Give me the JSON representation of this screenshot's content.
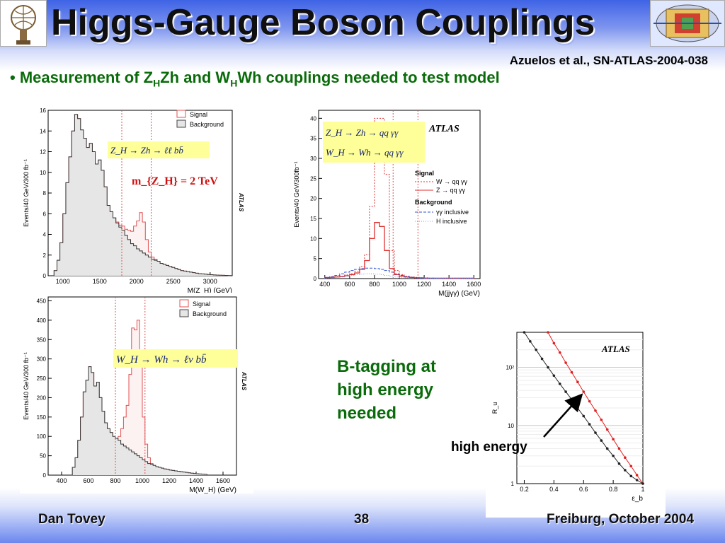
{
  "slide": {
    "title": "Higgs-Gauge Boson Couplings",
    "reference": "Azuelos et al., SN-ATLAS-2004-038",
    "bullet_marker": "•",
    "bullet_pre": "Measurement of Z",
    "bullet_sub1": "H",
    "bullet_mid": "Zh and W",
    "bullet_sub2": "H",
    "bullet_post": "Wh couplings needed to test model",
    "btag_text": "B-tagging at high energy needed",
    "arrow_label": "high energy",
    "footer_left": "Dan Tovey",
    "footer_center": "38",
    "footer_right": "Freiburg, October 2004"
  },
  "chart_data": [
    {
      "type": "histogram",
      "id": "zh-llbb",
      "xlabel": "M(Z_H) (GeV)",
      "ylabel": "Events/40 GeV/300 fb⁻¹",
      "xlim": [
        800,
        3300
      ],
      "ylim": [
        0,
        16
      ],
      "xticks": [
        1000,
        1500,
        2000,
        2500,
        3000
      ],
      "yticks": [
        0,
        2,
        4,
        6,
        8,
        10,
        12,
        14,
        16
      ],
      "legend": [
        "Signal",
        "Background"
      ],
      "watermark": "ATLAS",
      "process_label": "Z_H → Zh → ℓℓ bb̄",
      "mass_label": "m_{Z_H} = 2 TeV",
      "bin_width": 40,
      "x_start": 880,
      "background": [
        0.5,
        1.5,
        3.2,
        6,
        9,
        11.5,
        14,
        15.6,
        15.2,
        14.1,
        13.3,
        12.4,
        12.8,
        12.0,
        10.8,
        11.2,
        10.2,
        8.6,
        6.8,
        6.2,
        5.6,
        5.1,
        4.7,
        4.4,
        3.9,
        3.5,
        3.1,
        2.9,
        2.6,
        2.4,
        2.2,
        2.0,
        1.8,
        1.6,
        1.5,
        1.4,
        1.2,
        1.1,
        1.0,
        0.9,
        0.8,
        0.7,
        0.6,
        0.5,
        0.45,
        0.4,
        0.35,
        0.3,
        0.25,
        0.2,
        0.18,
        0.15,
        0.12,
        0.1,
        0.08,
        0.06,
        0.05,
        0.04,
        0.03,
        0.02
      ],
      "signal_plus_background": [
        0.5,
        1.5,
        3.2,
        6,
        9,
        11.5,
        14,
        15.6,
        15.2,
        14.1,
        13.3,
        12.4,
        12.8,
        12.0,
        10.8,
        11.2,
        10.2,
        8.6,
        6.8,
        6.2,
        5.6,
        5.2,
        4.9,
        4.8,
        4.5,
        4.4,
        4.3,
        4.8,
        5.3,
        6.1,
        5.2,
        3.5,
        2.3,
        1.8,
        1.6,
        1.4,
        1.2,
        1.1,
        1.0,
        0.9,
        0.8,
        0.7,
        0.6,
        0.5,
        0.45,
        0.4,
        0.35,
        0.3,
        0.25,
        0.2,
        0.18,
        0.15,
        0.12,
        0.1,
        0.08,
        0.06,
        0.05,
        0.04,
        0.03,
        0.02
      ],
      "markers_x": [
        1800,
        2200
      ]
    },
    {
      "type": "histogram",
      "id": "wh-lnubb",
      "xlabel": "M(W_H) (GeV)",
      "ylabel": "Events/40 GeV/300 fb⁻¹",
      "xlim": [
        300,
        1700
      ],
      "ylim": [
        0,
        460
      ],
      "xticks": [
        400,
        600,
        800,
        1000,
        1200,
        1400,
        1600
      ],
      "yticks": [
        0,
        50,
        100,
        150,
        200,
        250,
        300,
        350,
        400,
        450
      ],
      "legend": [
        "Signal",
        "Background"
      ],
      "watermark": "ATLAS",
      "process_label": "W_H → Wh → ℓν bb̄",
      "bin_width": 20,
      "x_start": 480,
      "background": [
        20,
        45,
        90,
        150,
        215,
        245,
        280,
        265,
        230,
        240,
        200,
        165,
        135,
        120,
        110,
        100,
        95,
        90,
        80,
        75,
        70,
        65,
        60,
        55,
        50,
        45,
        40,
        35,
        30,
        28,
        25,
        22,
        20,
        18,
        16,
        15,
        13,
        12,
        11,
        10,
        9,
        8,
        7,
        6,
        5,
        4,
        3.5,
        3,
        2.5,
        2
      ],
      "signal_plus_background": [
        20,
        45,
        90,
        150,
        215,
        245,
        280,
        265,
        230,
        240,
        200,
        165,
        135,
        120,
        110,
        100,
        95,
        100,
        120,
        150,
        180,
        260,
        380,
        375,
        400,
        290,
        150,
        80,
        45,
        30,
        25,
        22,
        20,
        18,
        16,
        15,
        13,
        12,
        11,
        10,
        9,
        8,
        7,
        6,
        5,
        4,
        3.5,
        3,
        2.5,
        2
      ],
      "markers_x": [
        800,
        1020
      ]
    },
    {
      "type": "histogram",
      "id": "qq-gamma-gamma",
      "xlabel": "M(jjγγ) (GeV)",
      "ylabel": "Events/40 GeV/300fb⁻¹",
      "xlim": [
        350,
        1650
      ],
      "ylim": [
        0,
        42
      ],
      "xticks": [
        400,
        600,
        800,
        1000,
        1200,
        1400,
        1600
      ],
      "yticks": [
        0,
        5,
        10,
        15,
        20,
        25,
        30,
        35,
        40
      ],
      "watermark": "ATLAS",
      "process_labels": [
        "Z_H → Zh → qq γγ",
        "W_H → Wh → qq γγ"
      ],
      "legend_signal_title": "Signal",
      "legend_signal": [
        "W  → qq γγ",
        "Z  → qq γγ"
      ],
      "legend_background_title": "Background",
      "legend_background": [
        "γγ inclusive",
        "H inclusive"
      ],
      "bin_width": 40,
      "x_start": 400,
      "W_signal": [
        0.3,
        0.4,
        0.5,
        0.6,
        0.9,
        1.2,
        1.8,
        3,
        6,
        18,
        40,
        40,
        26,
        7,
        2,
        1,
        0.6,
        0.4,
        0.3,
        0.2,
        0.2,
        0.1,
        0.1,
        0.1,
        0.1,
        0.1,
        0.1,
        0.1,
        0.1,
        0.1
      ],
      "Z_signal": [
        0.2,
        0.3,
        0.4,
        0.5,
        0.7,
        1,
        1.4,
        2.3,
        4.5,
        10,
        14,
        13,
        7,
        2.5,
        1,
        0.6,
        0.4,
        0.3,
        0.2,
        0.2,
        0.1,
        0.1,
        0.1,
        0.1,
        0.1,
        0.1,
        0.1,
        0.1,
        0.1,
        0.1
      ],
      "gg_inclusive": [
        0.3,
        0.5,
        0.8,
        1.2,
        1.6,
        2,
        2.3,
        2.5,
        2.6,
        2.6,
        2.5,
        2.3,
        2,
        1.6,
        1.2,
        0.8,
        0.5,
        0.3,
        0.2,
        0.1,
        0.1,
        0.1,
        0.05,
        0.05,
        0.05,
        0.05,
        0.05,
        0.05,
        0.05,
        0.05
      ],
      "H_inclusive": [
        0.1,
        0.2,
        0.3,
        0.4,
        0.6,
        0.8,
        1,
        1.1,
        1.2,
        1.2,
        1.1,
        1,
        0.8,
        0.6,
        0.4,
        0.3,
        0.2,
        0.1,
        0.1,
        0.1,
        0.05,
        0.05,
        0.05,
        0.05,
        0.05,
        0.05,
        0.05,
        0.05,
        0.05,
        0.05
      ],
      "markers_x": [
        950,
        1150
      ]
    },
    {
      "type": "scatter",
      "id": "rejection-vs-efficiency",
      "xlabel": "ε_b",
      "ylabel": "R_u",
      "watermark": "ATLAS",
      "xlim": [
        0.15,
        1.0
      ],
      "ylog": true,
      "ylim": [
        1,
        400
      ],
      "xticks": [
        0.2,
        0.4,
        0.6,
        0.8,
        1
      ],
      "ytick_labels": [
        "1",
        "10",
        "10²"
      ],
      "series": [
        {
          "color": "#e02020",
          "x": [
            0.36,
            0.4,
            0.44,
            0.48,
            0.52,
            0.56,
            0.6,
            0.64,
            0.68,
            0.72,
            0.76,
            0.8,
            0.84,
            0.88,
            0.92,
            0.96,
            1.0
          ],
          "y": [
            400,
            260,
            180,
            120,
            82,
            56,
            38,
            26,
            18,
            12.5,
            8.5,
            5.8,
            4,
            2.8,
            2,
            1.4,
            1
          ]
        },
        {
          "color": "#222222",
          "x": [
            0.2,
            0.24,
            0.28,
            0.32,
            0.36,
            0.4,
            0.44,
            0.48,
            0.52,
            0.56,
            0.6,
            0.64,
            0.68,
            0.72,
            0.76,
            0.8,
            0.84,
            0.88,
            0.92,
            0.96,
            1.0
          ],
          "y": [
            400,
            280,
            200,
            140,
            100,
            72,
            52,
            38,
            28,
            20,
            14.5,
            10.5,
            7.5,
            5.5,
            4,
            3,
            2.2,
            1.7,
            1.35,
            1.15,
            1
          ]
        }
      ]
    }
  ]
}
